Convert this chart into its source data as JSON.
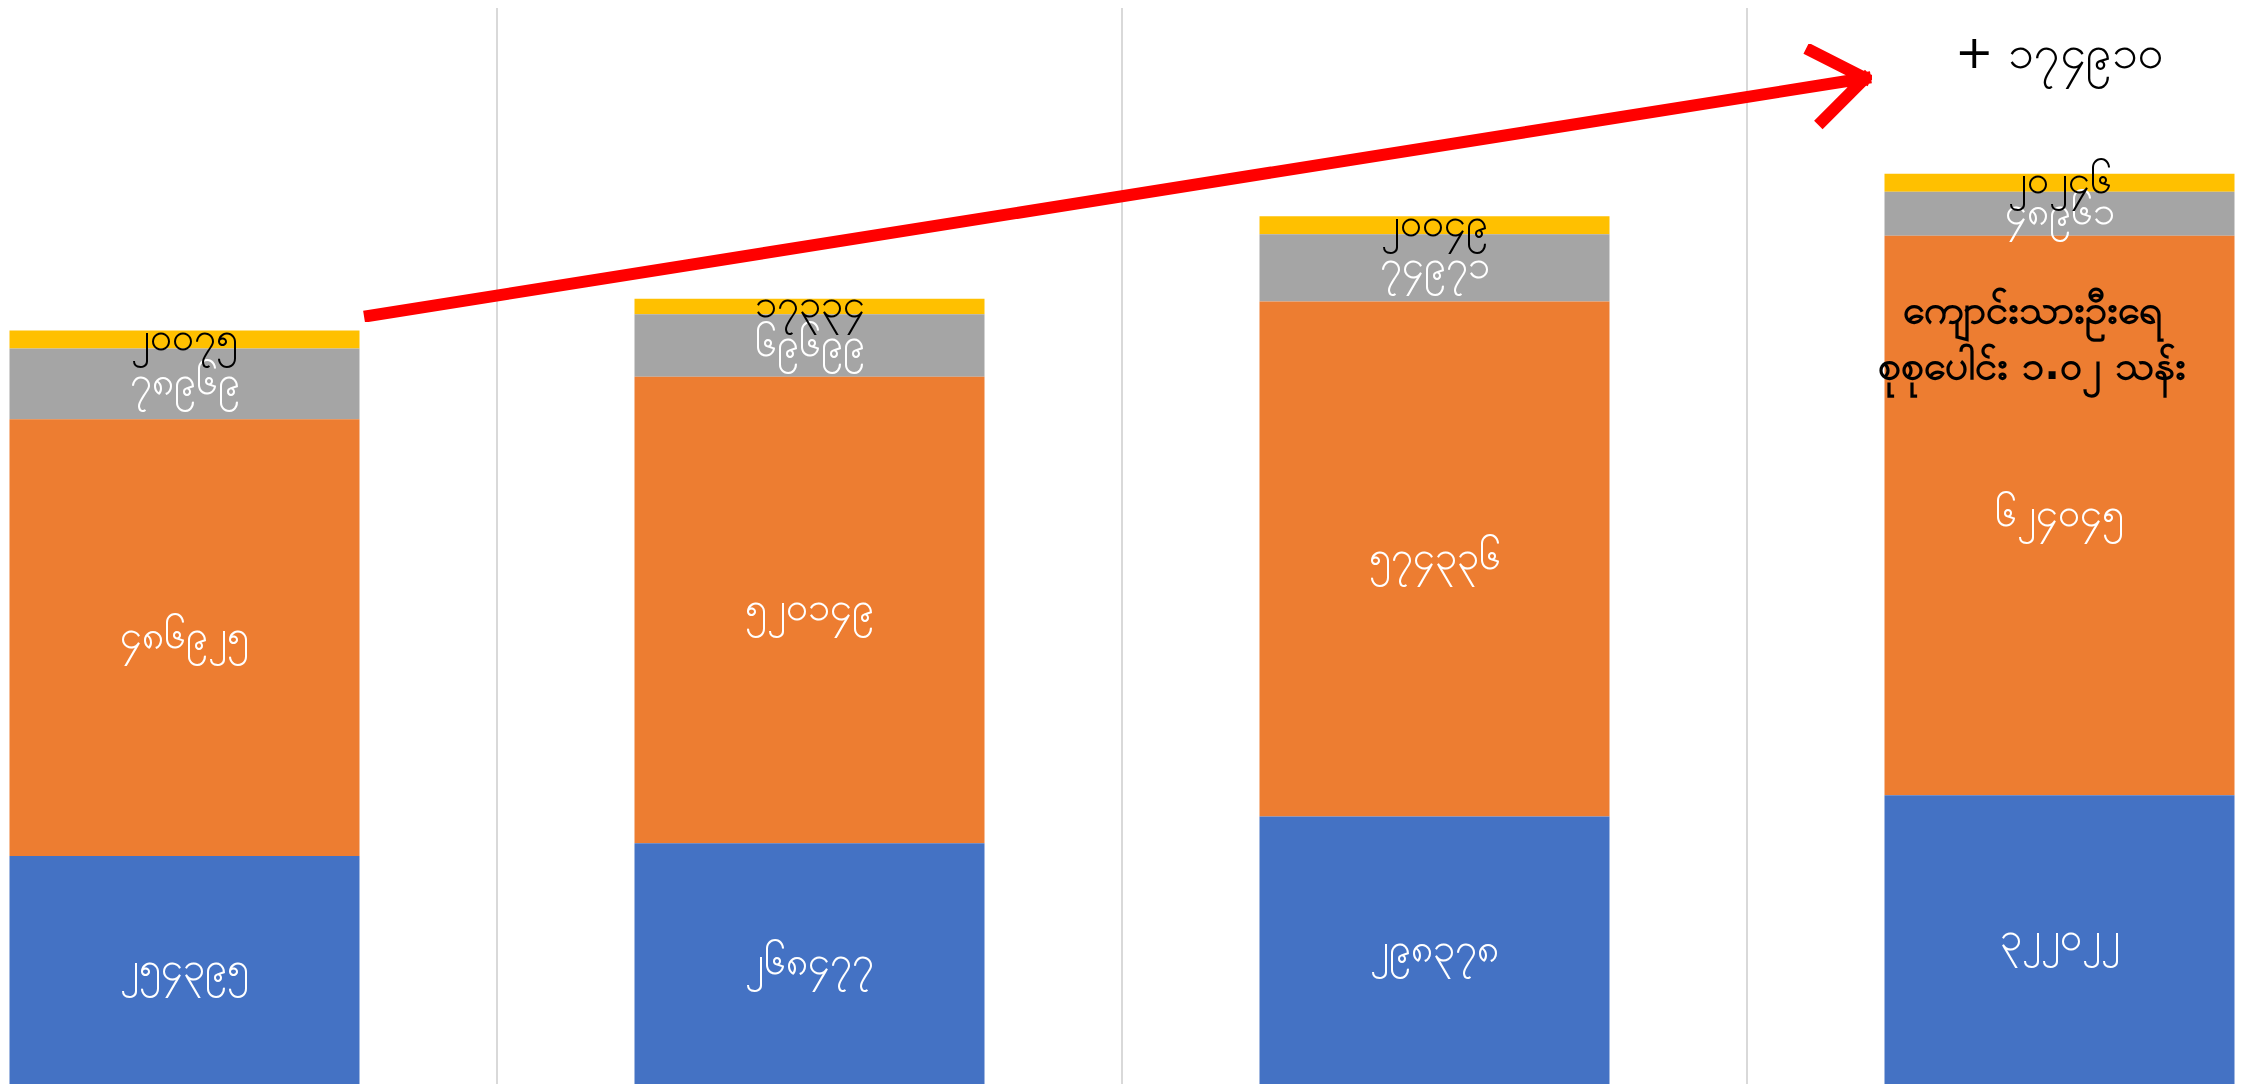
{
  "chart_data": {
    "type": "bar",
    "stacked": true,
    "categories": [
      null,
      null,
      null,
      null
    ],
    "series": [
      {
        "color": "#4472c4",
        "values": [
          254395,
          268477,
          298378,
          322022
        ],
        "value_labels": [
          "၂၅၄၃၉၅",
          "၂၆၈၄၇၇",
          "၂၉၈၃၇၈",
          "၃၂၂၀၂၂"
        ]
      },
      {
        "color": "#ed7d31",
        "values": [
          486925,
          520149,
          574336,
          624045
        ],
        "value_labels": [
          "၄၈၆၉၂၅",
          "၅၂၀၁၄၉",
          "၅၇၄၃၃၆",
          "၆၂၄၀၄၅"
        ]
      },
      {
        "color": "#a5a5a5",
        "values": [
          78969,
          69699,
          74971,
          48961
        ],
        "value_labels": [
          "၇၈၉၆၉",
          "၆၉၆၉၉",
          "၇၄၉၇၁",
          "၄၈၉၆၁"
        ]
      },
      {
        "color": "#ffc000",
        "values": [
          20075,
          17334,
          20049,
          20246
        ],
        "value_labels": [
          "၂၀၀၇၅",
          "၁၇၃၃၄",
          "၂၀၀၄၉",
          "၂၀၂၄၆"
        ]
      }
    ],
    "ylim": [
      0,
      1200000
    ],
    "grid": "x",
    "legend": false,
    "annotations": [
      "+ ၁၇၄၉၁၀",
      "ကျောင်းသားဦးရေ\nစုစုပေါင်း ၁.၀၂ သန်း"
    ]
  }
}
